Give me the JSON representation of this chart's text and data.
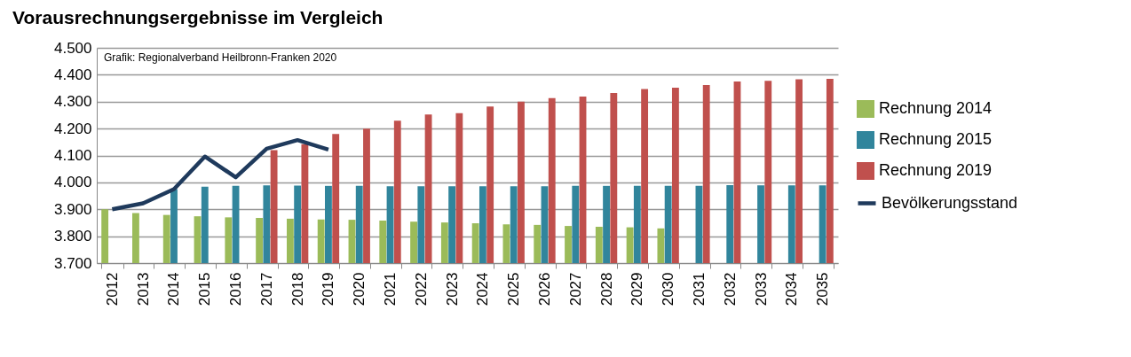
{
  "chart_data": {
    "type": "bar",
    "title": "Vorausrechnungsergebnisse im Vergleich",
    "categories": [
      "2012",
      "2013",
      "2014",
      "2015",
      "2016",
      "2017",
      "2018",
      "2019",
      "2020",
      "2021",
      "2022",
      "2023",
      "2024",
      "2025",
      "2026",
      "2027",
      "2028",
      "2029",
      "2030",
      "2031",
      "2032",
      "2033",
      "2034",
      "2035"
    ],
    "series": [
      {
        "name": "Rechnung 2014",
        "color": "#9bbb59",
        "values": [
          3.9,
          3.886,
          3.879,
          3.874,
          3.87,
          3.868,
          3.865,
          3.862,
          3.861,
          3.858,
          3.854,
          3.851,
          3.848,
          3.844,
          3.842,
          3.838,
          3.835,
          3.833,
          3.829,
          null,
          null,
          null,
          null,
          null
        ]
      },
      {
        "name": "Rechnung 2015",
        "color": "#31859c",
        "values": [
          null,
          null,
          3.975,
          3.984,
          3.987,
          3.989,
          3.988,
          3.987,
          3.987,
          3.986,
          3.986,
          3.986,
          3.986,
          3.986,
          3.986,
          3.987,
          3.987,
          3.987,
          3.987,
          3.987,
          3.99,
          3.989,
          3.989,
          3.989
        ]
      },
      {
        "name": "Rechnung 2019",
        "color": "#c0504d",
        "values": [
          null,
          null,
          null,
          null,
          null,
          4.12,
          4.142,
          4.18,
          4.2,
          4.229,
          4.252,
          4.257,
          4.282,
          4.3,
          4.313,
          4.319,
          4.332,
          4.347,
          4.352,
          4.362,
          4.375,
          4.377,
          4.383,
          4.385
        ]
      },
      {
        "name": "Bevölkerungsstand",
        "type": "line",
        "color": "#1f3a5c",
        "values": [
          3.9,
          3.922,
          3.975,
          4.096,
          4.019,
          4.125,
          4.157,
          4.122,
          null,
          null,
          null,
          null,
          null,
          null,
          null,
          null,
          null,
          null,
          null,
          null,
          null,
          null,
          null,
          null
        ]
      }
    ],
    "ylim": [
      3.7,
      4.5
    ],
    "yticks": [
      {
        "value": 3.7,
        "label": "3.700"
      },
      {
        "value": 3.8,
        "label": "3.800"
      },
      {
        "value": 3.9,
        "label": "3.900"
      },
      {
        "value": 4.0,
        "label": "4.000"
      },
      {
        "value": 4.1,
        "label": "4.100"
      },
      {
        "value": 4.2,
        "label": "4.200"
      },
      {
        "value": 4.3,
        "label": "4.300"
      },
      {
        "value": 4.4,
        "label": "4.400"
      },
      {
        "value": 4.5,
        "label": "4.500"
      }
    ],
    "grid": "y",
    "legend": "right",
    "annotations": [
      "Grafik: Regionalverband Heilbronn-Franken 2020"
    ]
  }
}
